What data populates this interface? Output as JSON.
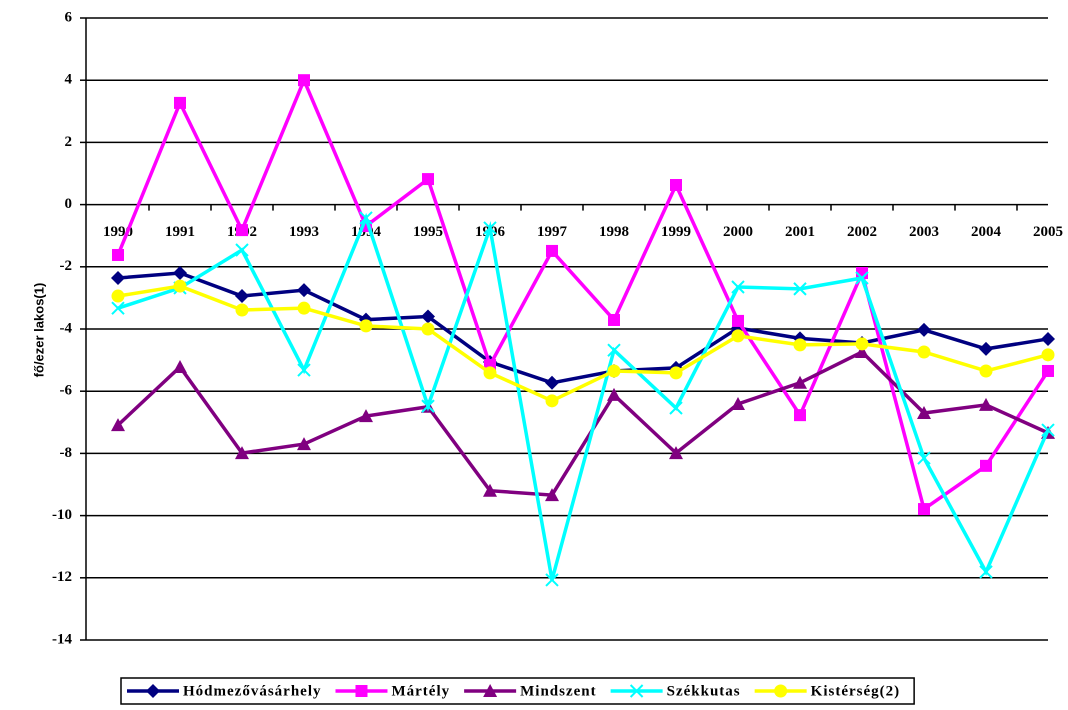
{
  "chart_data": {
    "type": "line",
    "y_label": "fő/ezer lakos(1)",
    "categories": [
      "1990",
      "1991",
      "1992",
      "1993",
      "1994",
      "1995",
      "1996",
      "1997",
      "1998",
      "1999",
      "2000",
      "2001",
      "2002",
      "2003",
      "2004",
      "2005"
    ],
    "series": [
      {
        "name": "Hódmezővásárhely",
        "color": "#000080",
        "marker": "diamond",
        "values": [
          -2.36,
          -2.2,
          -2.94,
          -2.75,
          -3.7,
          -3.6,
          -5.06,
          -5.73,
          -5.35,
          -5.25,
          -3.97,
          -4.3,
          -4.45,
          -4.03,
          -4.64,
          -4.32
        ]
      },
      {
        "name": "Mártély",
        "color": "#ff00ff",
        "marker": "square",
        "values": [
          -1.62,
          3.27,
          -0.82,
          4.0,
          -0.69,
          0.82,
          -5.16,
          -1.49,
          -3.71,
          0.63,
          -3.74,
          -6.77,
          -2.2,
          -9.79,
          -8.4,
          -5.35
        ]
      },
      {
        "name": "Mindszent",
        "color": "#800080",
        "marker": "triangle",
        "values": [
          -7.09,
          -5.22,
          -7.99,
          -7.7,
          -6.8,
          -6.5,
          -9.2,
          -9.34,
          -6.12,
          -7.99,
          -6.41,
          -5.73,
          -4.74,
          -6.7,
          -6.44,
          -7.34
        ]
      },
      {
        "name": "Székkutas",
        "color": "#00ffff",
        "marker": "x",
        "values": [
          -3.33,
          -2.68,
          -1.46,
          -5.32,
          -0.43,
          -6.48,
          -0.75,
          -12.07,
          -4.68,
          -6.54,
          -2.65,
          -2.71,
          -2.36,
          -8.15,
          -11.81,
          -7.25
        ]
      },
      {
        "name": "Kistérség(2)",
        "color": "#ffff00",
        "marker": "circle",
        "values": [
          -2.94,
          -2.62,
          -3.39,
          -3.33,
          -3.9,
          -4.0,
          -5.41,
          -6.31,
          -5.35,
          -5.41,
          -4.22,
          -4.51,
          -4.48,
          -4.74,
          -5.35,
          -4.83
        ]
      }
    ],
    "ylim": [
      -14,
      6
    ],
    "yticks": [
      -14,
      -12,
      -10,
      -8,
      -6,
      -4,
      -2,
      0,
      2,
      4,
      6
    ],
    "grid": true,
    "legend": "bottom"
  }
}
